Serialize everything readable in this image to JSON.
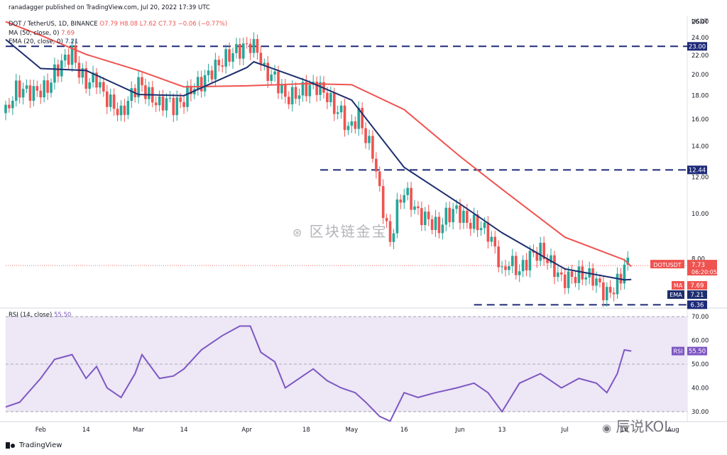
{
  "header": {
    "credit": "ranadagger published on TradingView.com, Jul 20, 2022 17:39 UTC",
    "symbol": "DOT / TetherUS, 1D, BINANCE",
    "ohlc": "O7.79  H8.08  L7.62  C7.73  −0.06 (−0.77%)",
    "ma_label": "MA (50, close, 0)",
    "ma_value": "7.69",
    "ema_label": "EMA (20, close, 0)",
    "ema_value": "7.21",
    "rsi_label": "RSI (14, close)",
    "rsi_value": "55.50"
  },
  "watermarks": {
    "center": "区块链金宝",
    "corner": "辰说KOL"
  },
  "footer": {
    "brand": "TradingView"
  },
  "colors": {
    "up": "#26a69a",
    "down": "#ef5350",
    "ma": "#ef5350",
    "ema": "#1e2e6e",
    "rsi": "#7e57c2",
    "rsi_band": "#ede7f6",
    "dash": "#1e2a78"
  },
  "chart_data": [
    {
      "type": "candlestick",
      "ylabel": "USDT",
      "ylim": [
        6.3,
        26.8
      ],
      "y_scale": "log",
      "y_ticks": [
        "26.00",
        "24.00",
        "22.00",
        "20.00",
        "18.00",
        "16.00",
        "14.00",
        "12.00",
        "10.00",
        "8.00"
      ],
      "x_ticks": [
        "Feb",
        "14",
        "Mar",
        "14",
        "Apr",
        "18",
        "May",
        "16",
        "Jun",
        "13",
        "Jul",
        "18",
        "Aug"
      ],
      "x_tick_dates": [
        "2022-02-01",
        "2022-02-14",
        "2022-03-01",
        "2022-03-14",
        "2022-04-01",
        "2022-04-18",
        "2022-05-01",
        "2022-05-16",
        "2022-06-01",
        "2022-06-13",
        "2022-07-01",
        "2022-07-18",
        "2022-08-01"
      ],
      "x_range": [
        "2022-01-22",
        "2022-08-05"
      ],
      "ohlc_closes": [
        {
          "date": "2022-01-22",
          "close": 16.5
        },
        {
          "date": "2022-01-25",
          "close": 18.6
        },
        {
          "date": "2022-01-30",
          "close": 18.3
        },
        {
          "date": "2022-02-03",
          "close": 18.7
        },
        {
          "date": "2022-02-05",
          "close": 20.2
        },
        {
          "date": "2022-02-08",
          "close": 21.6
        },
        {
          "date": "2022-02-10",
          "close": 22.3
        },
        {
          "date": "2022-02-12",
          "close": 20.3
        },
        {
          "date": "2022-02-14",
          "close": 19.2
        },
        {
          "date": "2022-02-17",
          "close": 19.6
        },
        {
          "date": "2022-02-19",
          "close": 18.1
        },
        {
          "date": "2022-02-21",
          "close": 17.4
        },
        {
          "date": "2022-02-24",
          "close": 16.4
        },
        {
          "date": "2022-02-26",
          "close": 17.5
        },
        {
          "date": "2022-02-28",
          "close": 18.7
        },
        {
          "date": "2022-03-01",
          "close": 19.2
        },
        {
          "date": "2022-03-04",
          "close": 18.0
        },
        {
          "date": "2022-03-07",
          "close": 17.2
        },
        {
          "date": "2022-03-09",
          "close": 17.6
        },
        {
          "date": "2022-03-11",
          "close": 17.1
        },
        {
          "date": "2022-03-14",
          "close": 17.6
        },
        {
          "date": "2022-03-16",
          "close": 18.6
        },
        {
          "date": "2022-03-19",
          "close": 19.2
        },
        {
          "date": "2022-03-22",
          "close": 20.4
        },
        {
          "date": "2022-03-25",
          "close": 21.4
        },
        {
          "date": "2022-03-28",
          "close": 22.3
        },
        {
          "date": "2022-03-31",
          "close": 22.8
        },
        {
          "date": "2022-04-02",
          "close": 23.2
        },
        {
          "date": "2022-04-04",
          "close": 22.6
        },
        {
          "date": "2022-04-06",
          "close": 20.3
        },
        {
          "date": "2022-04-09",
          "close": 19.7
        },
        {
          "date": "2022-04-12",
          "close": 17.8
        },
        {
          "date": "2022-04-15",
          "close": 18.1
        },
        {
          "date": "2022-04-18",
          "close": 18.7
        },
        {
          "date": "2022-04-21",
          "close": 18.9
        },
        {
          "date": "2022-04-24",
          "close": 18.0
        },
        {
          "date": "2022-04-26",
          "close": 16.9
        },
        {
          "date": "2022-04-28",
          "close": 16.5
        },
        {
          "date": "2022-04-30",
          "close": 15.2
        },
        {
          "date": "2022-05-03",
          "close": 16.3
        },
        {
          "date": "2022-05-05",
          "close": 14.6
        },
        {
          "date": "2022-05-07",
          "close": 13.6
        },
        {
          "date": "2022-05-09",
          "close": 11.1
        },
        {
          "date": "2022-05-11",
          "close": 9.4
        },
        {
          "date": "2022-05-12",
          "close": 8.6
        },
        {
          "date": "2022-05-14",
          "close": 10.3
        },
        {
          "date": "2022-05-16",
          "close": 11.2
        },
        {
          "date": "2022-05-18",
          "close": 10.6
        },
        {
          "date": "2022-05-20",
          "close": 10.0
        },
        {
          "date": "2022-05-23",
          "close": 9.7
        },
        {
          "date": "2022-05-26",
          "close": 9.3
        },
        {
          "date": "2022-05-28",
          "close": 9.9
        },
        {
          "date": "2022-05-31",
          "close": 10.2
        },
        {
          "date": "2022-06-03",
          "close": 9.6
        },
        {
          "date": "2022-06-06",
          "close": 9.5
        },
        {
          "date": "2022-06-09",
          "close": 9.1
        },
        {
          "date": "2022-06-12",
          "close": 8.0
        },
        {
          "date": "2022-06-13",
          "close": 7.4
        },
        {
          "date": "2022-06-15",
          "close": 7.9
        },
        {
          "date": "2022-06-18",
          "close": 7.5
        },
        {
          "date": "2022-06-21",
          "close": 8.1
        },
        {
          "date": "2022-06-24",
          "close": 8.3
        },
        {
          "date": "2022-06-27",
          "close": 7.8
        },
        {
          "date": "2022-06-30",
          "close": 7.2
        },
        {
          "date": "2022-07-03",
          "close": 7.3
        },
        {
          "date": "2022-07-06",
          "close": 7.4
        },
        {
          "date": "2022-07-09",
          "close": 7.3
        },
        {
          "date": "2022-07-12",
          "close": 6.8
        },
        {
          "date": "2022-07-13",
          "close": 6.7
        },
        {
          "date": "2022-07-15",
          "close": 6.9
        },
        {
          "date": "2022-07-17",
          "close": 7.3
        },
        {
          "date": "2022-07-18",
          "close": 7.79
        },
        {
          "date": "2022-07-20",
          "close": 7.73
        }
      ],
      "series": [
        {
          "name": "MA (50, close, 0)",
          "points": [
            {
              "date": "2022-01-22",
              "value": 26.0
            },
            {
              "date": "2022-02-01",
              "value": 24.3
            },
            {
              "date": "2022-02-14",
              "value": 22.1
            },
            {
              "date": "2022-03-01",
              "value": 20.4
            },
            {
              "date": "2022-03-14",
              "value": 18.8
            },
            {
              "date": "2022-04-01",
              "value": 18.9
            },
            {
              "date": "2022-04-18",
              "value": 19.1
            },
            {
              "date": "2022-05-01",
              "value": 19.0
            },
            {
              "date": "2022-05-16",
              "value": 16.8
            },
            {
              "date": "2022-06-01",
              "value": 13.3
            },
            {
              "date": "2022-06-13",
              "value": 11.3
            },
            {
              "date": "2022-07-01",
              "value": 8.9
            },
            {
              "date": "2022-07-18",
              "value": 7.95
            },
            {
              "date": "2022-07-20",
              "value": 7.69
            }
          ]
        },
        {
          "name": "EMA (20, close, 0)",
          "points": [
            {
              "date": "2022-01-22",
              "value": 23.8
            },
            {
              "date": "2022-02-01",
              "value": 20.6
            },
            {
              "date": "2022-02-14",
              "value": 20.4
            },
            {
              "date": "2022-03-01",
              "value": 18.1
            },
            {
              "date": "2022-03-14",
              "value": 18.0
            },
            {
              "date": "2022-04-01",
              "value": 20.7
            },
            {
              "date": "2022-04-03",
              "value": 21.3
            },
            {
              "date": "2022-04-18",
              "value": 19.4
            },
            {
              "date": "2022-05-01",
              "value": 17.6
            },
            {
              "date": "2022-05-16",
              "value": 12.6
            },
            {
              "date": "2022-06-01",
              "value": 10.5
            },
            {
              "date": "2022-06-13",
              "value": 9.1
            },
            {
              "date": "2022-07-01",
              "value": 7.6
            },
            {
              "date": "2022-07-18",
              "value": 7.2
            },
            {
              "date": "2022-07-20",
              "value": 7.21
            }
          ]
        }
      ],
      "horizontal_lines": [
        {
          "value": 23.0,
          "label": "23.00",
          "from_date": "2022-01-22"
        },
        {
          "value": 12.44,
          "label": "12.44",
          "from_date": "2022-04-22"
        },
        {
          "value": 6.36,
          "label": "6.36",
          "from_date": "2022-06-05"
        }
      ],
      "price_labels": [
        {
          "text": "DOTUSDT",
          "value": "7.73",
          "extra": "06:20:05"
        },
        {
          "text": "MA",
          "value": "7.69"
        },
        {
          "text": "EMA",
          "value": "7.21"
        }
      ]
    },
    {
      "type": "line",
      "ylabel": "",
      "ylim": [
        27,
        73
      ],
      "y_ticks": [
        "70.00",
        "60.00",
        "50.00",
        "40.00",
        "30.00"
      ],
      "band": [
        30,
        70
      ],
      "midline": 50,
      "series": [
        {
          "name": "RSI (14, close)",
          "points": [
            {
              "date": "2022-01-22",
              "value": 32
            },
            {
              "date": "2022-01-26",
              "value": 34
            },
            {
              "date": "2022-02-01",
              "value": 44
            },
            {
              "date": "2022-02-05",
              "value": 52
            },
            {
              "date": "2022-02-10",
              "value": 54
            },
            {
              "date": "2022-02-14",
              "value": 44
            },
            {
              "date": "2022-02-17",
              "value": 49
            },
            {
              "date": "2022-02-20",
              "value": 40
            },
            {
              "date": "2022-02-24",
              "value": 36
            },
            {
              "date": "2022-02-28",
              "value": 46
            },
            {
              "date": "2022-03-02",
              "value": 54
            },
            {
              "date": "2022-03-07",
              "value": 44
            },
            {
              "date": "2022-03-11",
              "value": 45
            },
            {
              "date": "2022-03-14",
              "value": 48
            },
            {
              "date": "2022-03-19",
              "value": 56
            },
            {
              "date": "2022-03-25",
              "value": 62
            },
            {
              "date": "2022-03-30",
              "value": 66
            },
            {
              "date": "2022-04-02",
              "value": 66
            },
            {
              "date": "2022-04-05",
              "value": 55
            },
            {
              "date": "2022-04-09",
              "value": 51
            },
            {
              "date": "2022-04-12",
              "value": 40
            },
            {
              "date": "2022-04-16",
              "value": 44
            },
            {
              "date": "2022-04-20",
              "value": 48
            },
            {
              "date": "2022-04-24",
              "value": 43
            },
            {
              "date": "2022-04-28",
              "value": 40
            },
            {
              "date": "2022-05-02",
              "value": 38
            },
            {
              "date": "2022-05-05",
              "value": 34
            },
            {
              "date": "2022-05-09",
              "value": 28
            },
            {
              "date": "2022-05-12",
              "value": 26
            },
            {
              "date": "2022-05-16",
              "value": 38
            },
            {
              "date": "2022-05-20",
              "value": 36
            },
            {
              "date": "2022-05-25",
              "value": 38
            },
            {
              "date": "2022-05-31",
              "value": 40
            },
            {
              "date": "2022-06-05",
              "value": 42
            },
            {
              "date": "2022-06-09",
              "value": 38
            },
            {
              "date": "2022-06-13",
              "value": 30
            },
            {
              "date": "2022-06-18",
              "value": 42
            },
            {
              "date": "2022-06-24",
              "value": 46
            },
            {
              "date": "2022-06-30",
              "value": 40
            },
            {
              "date": "2022-07-05",
              "value": 44
            },
            {
              "date": "2022-07-10",
              "value": 42
            },
            {
              "date": "2022-07-13",
              "value": 38
            },
            {
              "date": "2022-07-16",
              "value": 46
            },
            {
              "date": "2022-07-18",
              "value": 56
            },
            {
              "date": "2022-07-20",
              "value": 55.5
            }
          ]
        }
      ],
      "price_labels": [
        {
          "text": "RSI",
          "value": "55.50"
        }
      ]
    }
  ]
}
